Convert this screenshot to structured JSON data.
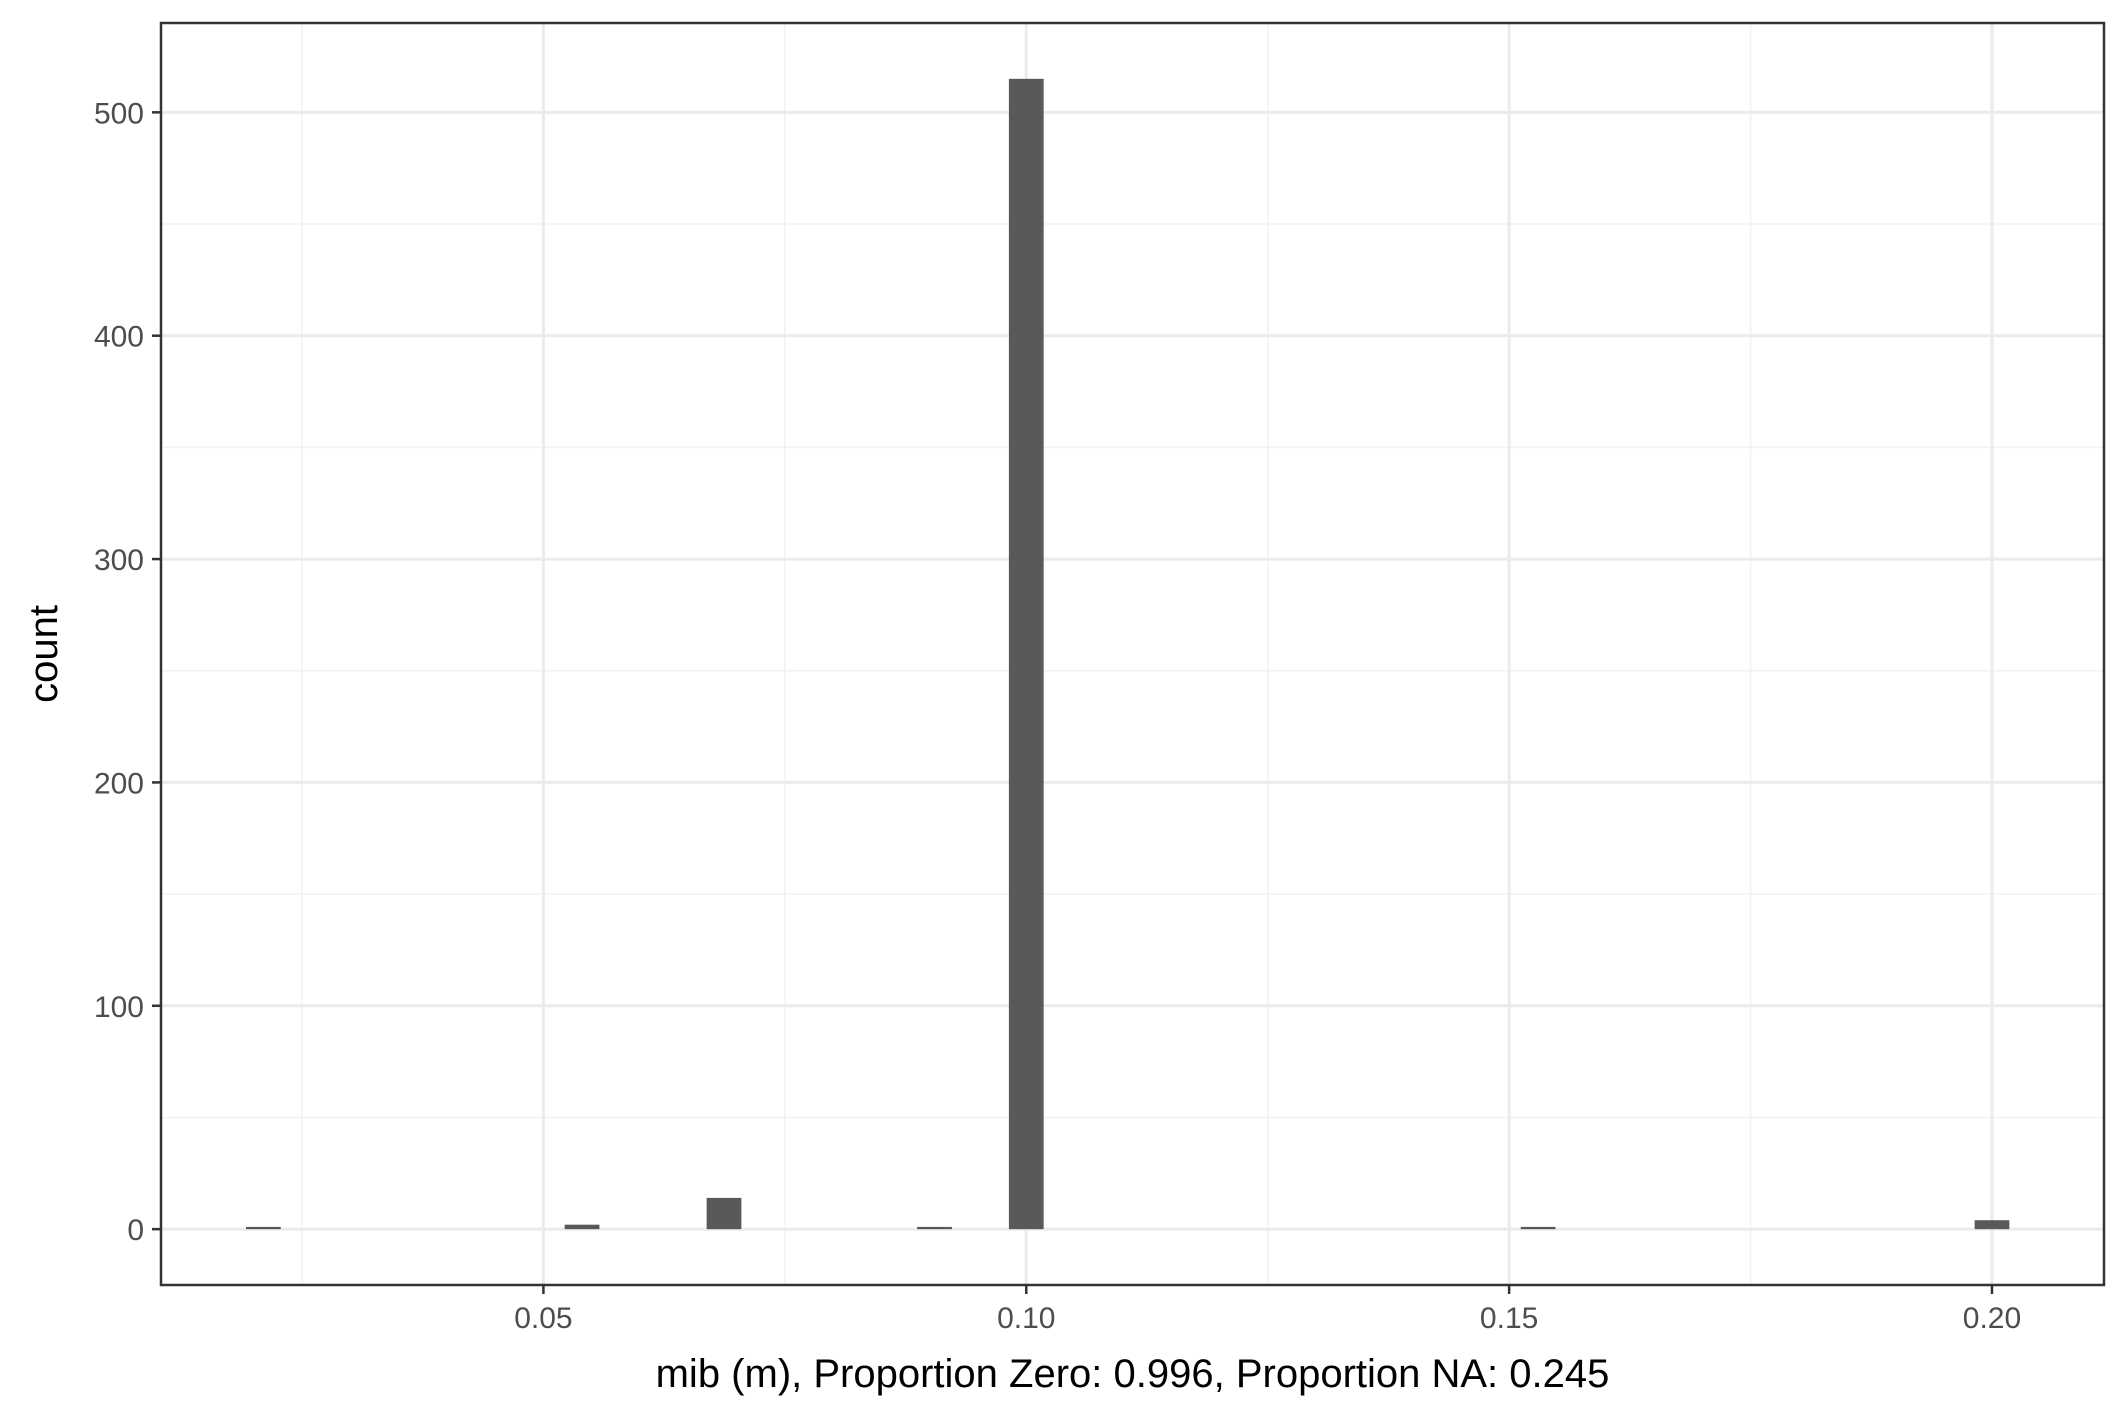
{
  "chart_data": {
    "type": "bar",
    "title": "",
    "xlabel": "mib (m), Proportion Zero: 0.996, Proportion NA: 0.245",
    "ylabel": "count",
    "xlim": [
      0.0104,
      0.2116
    ],
    "ylim": [
      -25,
      540
    ],
    "x_ticks": [
      0.05,
      0.1,
      0.15,
      0.2
    ],
    "x_tick_labels": [
      "0.05",
      "0.10",
      "0.15",
      "0.20"
    ],
    "x_minor_ticks": [
      0.025,
      0.075,
      0.125,
      0.175
    ],
    "y_ticks": [
      0,
      100,
      200,
      300,
      400,
      500
    ],
    "y_tick_labels": [
      "0",
      "100",
      "200",
      "300",
      "400",
      "500"
    ],
    "y_minor_ticks": [
      50,
      150,
      250,
      350,
      450
    ],
    "bin_width": 0.0036,
    "bins": [
      {
        "x": 0.021,
        "count": 1
      },
      {
        "x": 0.054,
        "count": 2
      },
      {
        "x": 0.0687,
        "count": 14
      },
      {
        "x": 0.0905,
        "count": 1
      },
      {
        "x": 0.1,
        "count": 515
      },
      {
        "x": 0.153,
        "count": 1
      },
      {
        "x": 0.2,
        "count": 4
      }
    ],
    "grid": true,
    "colors": {
      "bar": "#595959",
      "grid_major": "#ebebeb",
      "grid_minor": "#f2f2f2",
      "panel_border": "#333333",
      "tick": "#333333",
      "background": "#ffffff"
    }
  }
}
